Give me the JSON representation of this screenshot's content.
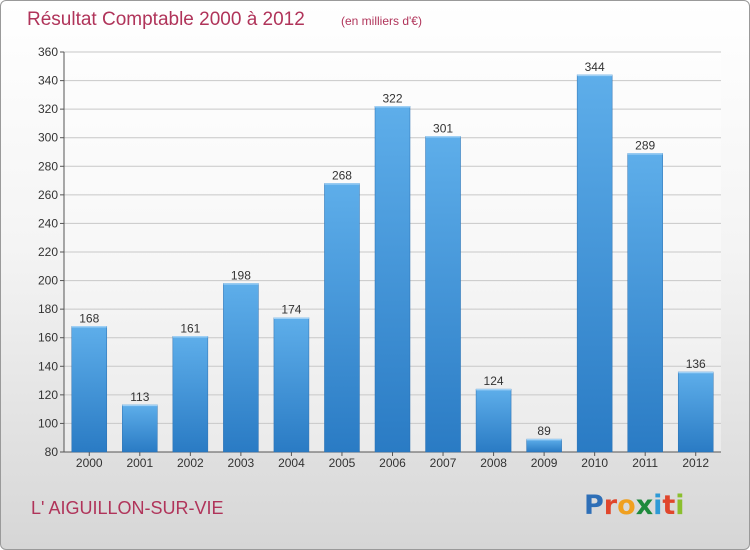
{
  "chart_data": {
    "type": "bar",
    "title": "Résultat Comptable 2000 à 2012",
    "subtitle": "(en milliers d'€)",
    "categories": [
      "2000",
      "2001",
      "2002",
      "2003",
      "2004",
      "2005",
      "2006",
      "2007",
      "2008",
      "2009",
      "2010",
      "2011",
      "2012"
    ],
    "values": [
      168,
      113,
      161,
      198,
      174,
      268,
      322,
      301,
      124,
      89,
      344,
      289,
      136
    ],
    "ylim": [
      80,
      360
    ],
    "yticks": [
      80,
      100,
      120,
      140,
      160,
      180,
      200,
      220,
      240,
      260,
      280,
      300,
      320,
      340,
      360
    ],
    "grid": true,
    "bar_color": "#3d8fd6",
    "grid_color": "#c8c8c8"
  },
  "footer": {
    "commune": "L' AIGUILLON-SUR-VIE",
    "logo_letters": [
      {
        "ch": "P",
        "color": "#2e6fb7"
      },
      {
        "ch": "r",
        "color": "#e0462c"
      },
      {
        "ch": "o",
        "color": "#f0a020"
      },
      {
        "ch": "x",
        "color": "#1e8a3c"
      },
      {
        "ch": "i",
        "color": "#2e9ad6"
      },
      {
        "ch": "t",
        "color": "#e0462c"
      },
      {
        "ch": "i",
        "color": "#8bbf2e"
      }
    ]
  }
}
